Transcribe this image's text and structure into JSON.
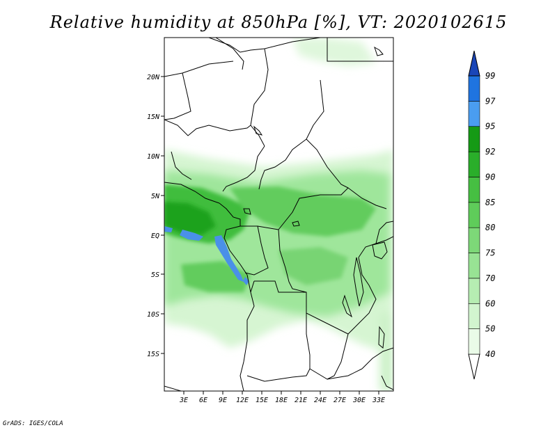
{
  "title": "Relative humidity at 850hPa [%], VT: 2020102615",
  "footer": "GrADS: IGES/COLA",
  "map": {
    "lat_labels": [
      "20N",
      "15N",
      "10N",
      "5N",
      "EQ",
      "5S",
      "10S",
      "15S"
    ],
    "lon_labels": [
      "3E",
      "6E",
      "9E",
      "12E",
      "15E",
      "18E",
      "21E",
      "24E",
      "27E",
      "30E",
      "33E"
    ]
  },
  "colorbar": {
    "levels": [
      "40",
      "50",
      "60",
      "70",
      "75",
      "80",
      "85",
      "90",
      "92",
      "95",
      "97",
      "99"
    ],
    "colors": [
      "#eafbe8",
      "#d2f5cf",
      "#b6edb2",
      "#98e394",
      "#7dd878",
      "#5fcc5a",
      "#46bf42",
      "#2aae2a",
      "#159a15",
      "#4a9df0",
      "#1f74e0",
      "#1652c8"
    ],
    "under_color": "#ffffff",
    "over_color": "#1a46b8"
  }
}
